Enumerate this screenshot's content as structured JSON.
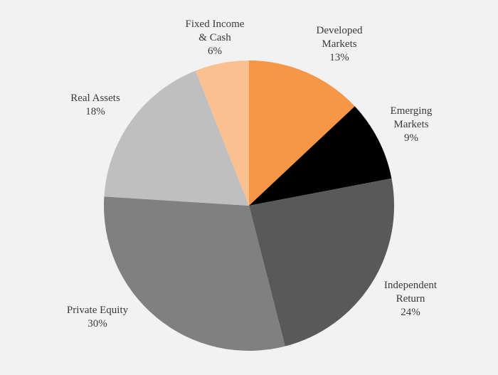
{
  "chart_data": {
    "type": "pie",
    "start_angle_deg": 0,
    "direction": "clockwise",
    "slices": [
      {
        "label_lines": [
          "Developed",
          "Markets"
        ],
        "value": 13,
        "display": "13%",
        "color": "#f79646"
      },
      {
        "label_lines": [
          "Emerging",
          "Markets"
        ],
        "value": 9,
        "display": "9%",
        "color": "#000000"
      },
      {
        "label_lines": [
          "Independent",
          "Return"
        ],
        "value": 24,
        "display": "24%",
        "color": "#595959"
      },
      {
        "label_lines": [
          "Private Equity"
        ],
        "value": 30,
        "display": "30%",
        "color": "#808080"
      },
      {
        "label_lines": [
          "Real Assets"
        ],
        "value": 18,
        "display": "18%",
        "color": "#bfbfbf"
      },
      {
        "label_lines": [
          "Fixed Income",
          "& Cash"
        ],
        "value": 6,
        "display": "6%",
        "color": "#fac090"
      }
    ],
    "legend": "none",
    "data_labels": "outside"
  }
}
